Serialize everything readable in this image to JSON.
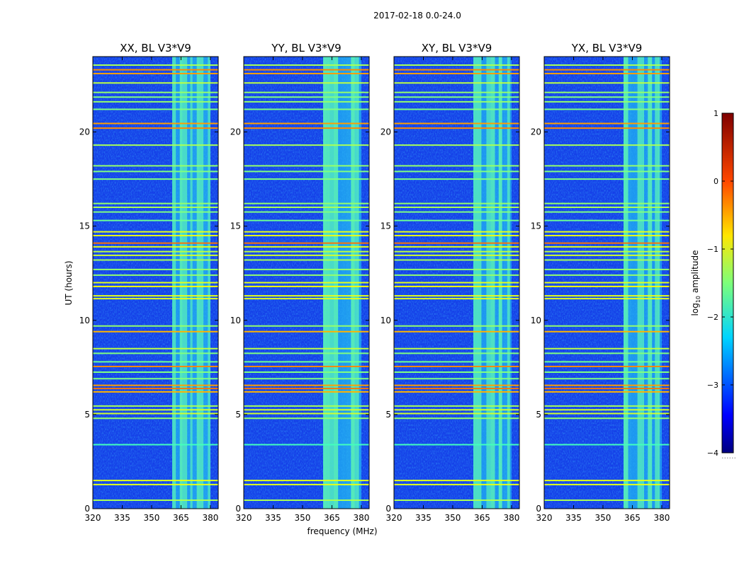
{
  "figure": {
    "suptitle": "2017-02-18 0.0-24.0",
    "ylabel": "UT (hours)",
    "xlabel": "frequency (MHz)"
  },
  "chart_data": {
    "type": "heatmap",
    "description_series": "dynamic spectrum waterfall, log10 amplitude",
    "panels": [
      {
        "name": "XX",
        "title": "XX, BL V3*V9"
      },
      {
        "name": "YY",
        "title": "YY, BL V3*V9"
      },
      {
        "name": "XY",
        "title": "XY, BL V3*V9"
      },
      {
        "name": "YX",
        "title": "YX, BL V3*V9"
      }
    ],
    "xlim": [
      320,
      384
    ],
    "ylim": [
      0,
      24
    ],
    "xticks": [
      320,
      335,
      350,
      365,
      380
    ],
    "yticks": [
      0,
      5,
      10,
      15,
      20
    ],
    "bright_band_mhz": [
      360.5,
      380
    ],
    "colorbar": {
      "label_prefix": "log",
      "label_sub": "10",
      "label_suffix": " amplitude",
      "range": [
        -4,
        1
      ],
      "ticks": [
        1,
        0,
        -1,
        -2,
        -3,
        -4
      ],
      "tick_labels": [
        "1",
        "0",
        "−1",
        "−2",
        "−3",
        "−4"
      ],
      "extra": "......"
    },
    "rfi_lines": [
      {
        "ut": 0.45,
        "level": -1.3
      },
      {
        "ut": 1.28,
        "level": -1.0
      },
      {
        "ut": 1.5,
        "level": -1.0
      },
      {
        "ut": 3.4,
        "level": -1.8
      },
      {
        "ut": 4.8,
        "level": -1.4
      },
      {
        "ut": 5.05,
        "level": -1.1
      },
      {
        "ut": 5.25,
        "level": -1.1
      },
      {
        "ut": 5.45,
        "level": -1.3
      },
      {
        "ut": 6.2,
        "level": -0.5
      },
      {
        "ut": 6.38,
        "level": -0.2
      },
      {
        "ut": 6.55,
        "level": -0.4
      },
      {
        "ut": 6.9,
        "level": -1.5
      },
      {
        "ut": 7.25,
        "level": -1.5
      },
      {
        "ut": 7.55,
        "level": -0.3
      },
      {
        "ut": 7.8,
        "level": -1.6
      },
      {
        "ut": 8.25,
        "level": -1.5
      },
      {
        "ut": 8.5,
        "level": -1.2
      },
      {
        "ut": 9.4,
        "level": -0.5
      },
      {
        "ut": 9.7,
        "level": -1.4
      },
      {
        "ut": 11.15,
        "level": -1.0
      },
      {
        "ut": 11.3,
        "level": -1.0
      },
      {
        "ut": 11.8,
        "level": -0.9
      },
      {
        "ut": 12.0,
        "level": -1.0
      },
      {
        "ut": 12.4,
        "level": -1.4
      },
      {
        "ut": 12.7,
        "level": -1.4
      },
      {
        "ut": 13.2,
        "level": -1.3
      },
      {
        "ut": 13.45,
        "level": -1.1
      },
      {
        "ut": 13.65,
        "level": -1.2
      },
      {
        "ut": 13.9,
        "level": -1.0
      },
      {
        "ut": 14.1,
        "level": -0.2
      },
      {
        "ut": 14.5,
        "level": -1.0
      },
      {
        "ut": 14.7,
        "level": -1.0
      },
      {
        "ut": 15.3,
        "level": -1.6
      },
      {
        "ut": 15.75,
        "level": -1.5
      },
      {
        "ut": 16.0,
        "level": -1.3
      },
      {
        "ut": 16.2,
        "level": -1.4
      },
      {
        "ut": 17.5,
        "level": -1.5
      },
      {
        "ut": 17.9,
        "level": -1.5
      },
      {
        "ut": 18.2,
        "level": -1.4
      },
      {
        "ut": 19.3,
        "level": -1.3
      },
      {
        "ut": 20.2,
        "level": -0.3
      },
      {
        "ut": 20.45,
        "level": -0.4
      },
      {
        "ut": 21.2,
        "level": -1.5
      },
      {
        "ut": 21.6,
        "level": -1.4
      },
      {
        "ut": 21.85,
        "level": -1.5
      },
      {
        "ut": 22.1,
        "level": -1.4
      },
      {
        "ut": 22.6,
        "level": -1.2
      },
      {
        "ut": 23.1,
        "level": -0.4
      },
      {
        "ut": 23.3,
        "level": -0.3
      },
      {
        "ut": 23.55,
        "level": -1.3
      }
    ]
  }
}
